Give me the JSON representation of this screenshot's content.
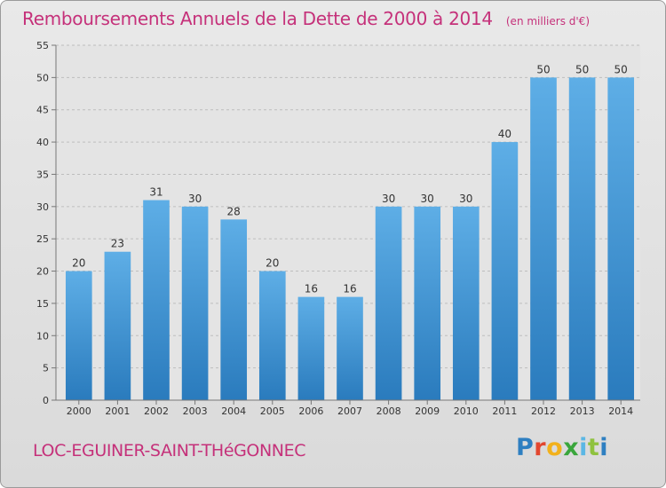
{
  "header": {
    "title": "Remboursements Annuels de la Dette de 2000 à 2014",
    "subtitle": "(en milliers d'€)"
  },
  "footer": {
    "commune": "LOC-EGUINER-SAINT-THéGONNEC",
    "logo_text": "Proxiti"
  },
  "colors": {
    "accent": "#c5317a",
    "bar_light": "#5eaee6",
    "bar_dark": "#2a7bbd"
  },
  "chart_data": {
    "type": "bar",
    "title": "Remboursements Annuels de la Dette de 2000 à 2014",
    "subtitle": "(en milliers d'€)",
    "categories": [
      "2000",
      "2001",
      "2002",
      "2003",
      "2004",
      "2005",
      "2006",
      "2007",
      "2008",
      "2009",
      "2010",
      "2011",
      "2012",
      "2013",
      "2014"
    ],
    "values": [
      20,
      23,
      31,
      30,
      28,
      20,
      16,
      16,
      30,
      30,
      30,
      40,
      50,
      50,
      50
    ],
    "data_labels": [
      "20",
      "23",
      "31",
      "30",
      "28",
      "20",
      "16",
      "16",
      "30",
      "30",
      "30",
      "40",
      "50",
      "50",
      "50"
    ],
    "ylim": [
      0,
      55
    ],
    "yticks": [
      0,
      5,
      10,
      15,
      20,
      25,
      30,
      35,
      40,
      45,
      50,
      55
    ],
    "ytick_labels": [
      "0",
      "5",
      "10",
      "15",
      "20",
      "25",
      "30",
      "35",
      "40",
      "45",
      "50",
      "55"
    ],
    "grid": true,
    "legend": "none"
  }
}
